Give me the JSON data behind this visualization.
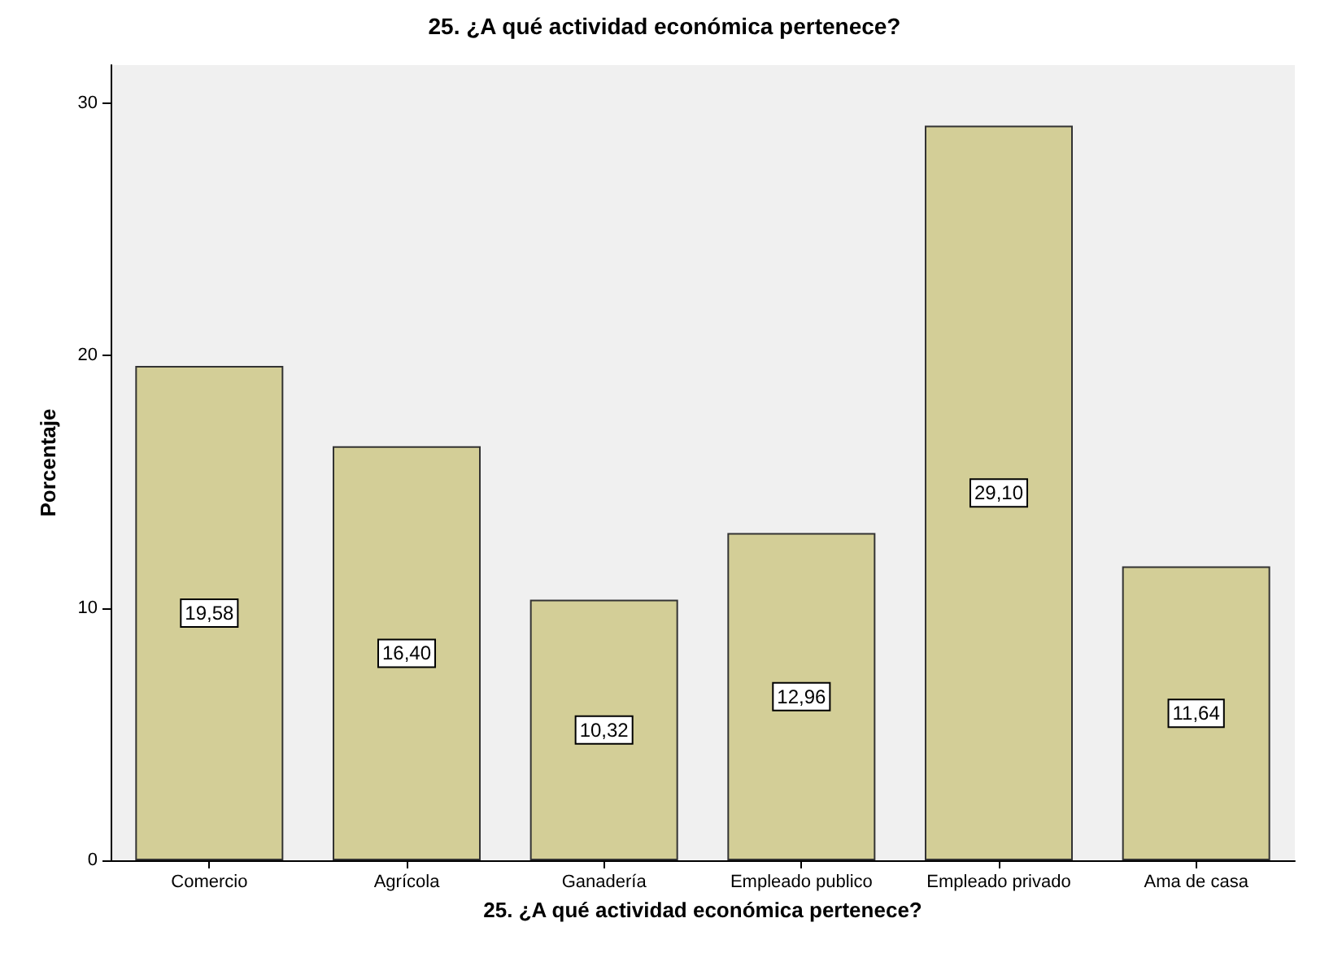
{
  "chart_data": {
    "type": "bar",
    "title": "25. ¿A qué actividad económica pertenece?",
    "xlabel": "25. ¿A qué actividad económica pertenece?",
    "ylabel": "Porcentaje",
    "categories": [
      "Comercio",
      "Agrícola",
      "Ganadería",
      "Empleado publico",
      "Empleado privado",
      "Ama de casa"
    ],
    "values": [
      19.58,
      16.4,
      10.32,
      12.96,
      29.1,
      11.64
    ],
    "value_labels": [
      "19,58",
      "16,40",
      "10,32",
      "12,96",
      "29,10",
      "11,64"
    ],
    "color": "#d3ce97",
    "ylim": [
      0,
      31.5
    ],
    "yticks": [
      0,
      10,
      20,
      30
    ],
    "grid": false
  }
}
